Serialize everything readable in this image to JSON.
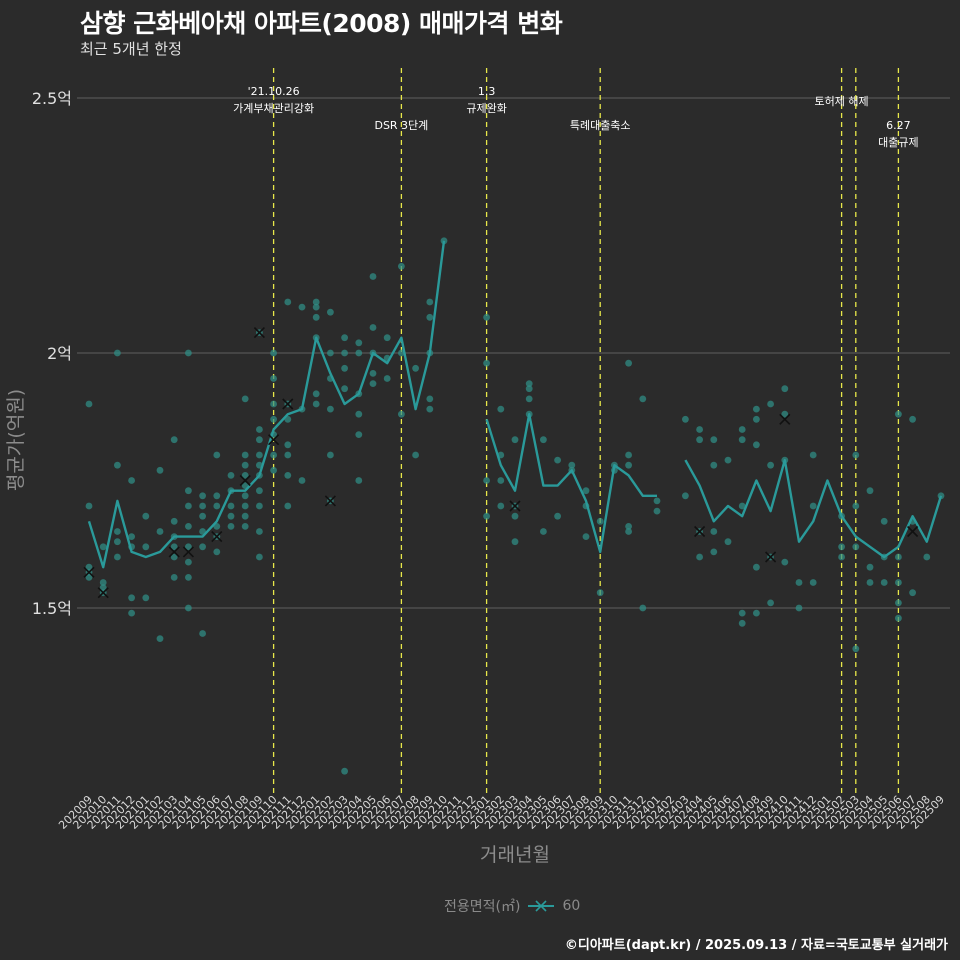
{
  "title": "삼향 근화베아채 아파트(2008) 매매가격 변화",
  "subtitle": "최근 5개년 한정",
  "caption": "©디아파트(dapt.kr) / 2025.09.13 / 자료=국토교통부 실거래가",
  "colors": {
    "background": "#2b2b2b",
    "series": "#2a9a9a",
    "point": "#2f8f86",
    "vline": "#e8e84a",
    "grid": "#555555"
  },
  "chart_data": {
    "type": "line",
    "title": "삼향 근화베아채 아파트(2008) 매매가격 변화",
    "xlabel": "거래년월",
    "ylabel": "평균가(억원)",
    "ylim": [
      1.15,
      2.58
    ],
    "yticks": [
      {
        "v": 1.5,
        "label": "1.5억"
      },
      {
        "v": 2.0,
        "label": "2억"
      },
      {
        "v": 2.5,
        "label": "2.5억"
      }
    ],
    "categories": [
      "202009",
      "202010",
      "202011",
      "202012",
      "202101",
      "202102",
      "202103",
      "202104",
      "202105",
      "202106",
      "202107",
      "202108",
      "202109",
      "202110",
      "202111",
      "202112",
      "202201",
      "202202",
      "202203",
      "202204",
      "202205",
      "202206",
      "202207",
      "202208",
      "202209",
      "202210",
      "202211",
      "202212",
      "202301",
      "202302",
      "202303",
      "202304",
      "202305",
      "202306",
      "202307",
      "202308",
      "202309",
      "202310",
      "202311",
      "202312",
      "202401",
      "202402",
      "202403",
      "202404",
      "202405",
      "202406",
      "202407",
      "202408",
      "202409",
      "202410",
      "202411",
      "202412",
      "202501",
      "202502",
      "202503",
      "202504",
      "202505",
      "202506",
      "202507",
      "202508",
      "202509"
    ],
    "legend": {
      "title": "전용면적(㎡)",
      "label": "60"
    },
    "series": [
      {
        "name": "60",
        "values": [
          1.67,
          1.58,
          1.71,
          1.61,
          1.6,
          1.61,
          1.64,
          1.64,
          1.64,
          1.67,
          1.73,
          1.73,
          1.76,
          1.85,
          1.88,
          1.89,
          2.03,
          1.96,
          1.9,
          1.92,
          2.0,
          1.98,
          2.03,
          1.89,
          2.0,
          2.22,
          null,
          null,
          1.87,
          1.78,
          1.73,
          1.88,
          1.74,
          1.74,
          1.77,
          1.71,
          1.61,
          1.78,
          1.76,
          1.72,
          1.72,
          null,
          1.79,
          1.74,
          1.67,
          1.7,
          1.68,
          1.75,
          1.69,
          1.79,
          1.63,
          1.67,
          1.75,
          1.68,
          1.64,
          1.62,
          1.6,
          1.62,
          1.68,
          1.63,
          1.72
        ]
      }
    ],
    "points": [
      [
        0,
        1.9
      ],
      [
        0,
        1.7
      ],
      [
        0,
        1.58
      ],
      [
        0,
        1.57
      ],
      [
        0,
        1.56
      ],
      [
        1,
        1.62
      ],
      [
        1,
        1.55
      ],
      [
        1,
        1.54
      ],
      [
        1,
        1.53
      ],
      [
        2,
        2.0
      ],
      [
        2,
        1.78
      ],
      [
        2,
        1.65
      ],
      [
        2,
        1.63
      ],
      [
        2,
        1.6
      ],
      [
        3,
        1.75
      ],
      [
        3,
        1.64
      ],
      [
        3,
        1.62
      ],
      [
        3,
        1.52
      ],
      [
        3,
        1.49
      ],
      [
        4,
        1.68
      ],
      [
        4,
        1.62
      ],
      [
        4,
        1.52
      ],
      [
        5,
        1.77
      ],
      [
        5,
        1.65
      ],
      [
        5,
        1.44
      ],
      [
        6,
        1.83
      ],
      [
        6,
        1.67
      ],
      [
        6,
        1.64
      ],
      [
        6,
        1.62
      ],
      [
        6,
        1.6
      ],
      [
        6,
        1.56
      ],
      [
        7,
        2.0
      ],
      [
        7,
        1.73
      ],
      [
        7,
        1.7
      ],
      [
        7,
        1.66
      ],
      [
        7,
        1.62
      ],
      [
        7,
        1.59
      ],
      [
        7,
        1.56
      ],
      [
        7,
        1.5
      ],
      [
        8,
        1.72
      ],
      [
        8,
        1.7
      ],
      [
        8,
        1.68
      ],
      [
        8,
        1.65
      ],
      [
        8,
        1.62
      ],
      [
        8,
        1.45
      ],
      [
        9,
        1.8
      ],
      [
        9,
        1.72
      ],
      [
        9,
        1.7
      ],
      [
        9,
        1.66
      ],
      [
        9,
        1.64
      ],
      [
        9,
        1.61
      ],
      [
        10,
        1.76
      ],
      [
        10,
        1.73
      ],
      [
        10,
        1.7
      ],
      [
        10,
        1.68
      ],
      [
        10,
        1.66
      ],
      [
        11,
        1.91
      ],
      [
        11,
        1.8
      ],
      [
        11,
        1.78
      ],
      [
        11,
        1.76
      ],
      [
        11,
        1.74
      ],
      [
        11,
        1.72
      ],
      [
        11,
        1.7
      ],
      [
        11,
        1.68
      ],
      [
        11,
        1.66
      ],
      [
        12,
        2.04
      ],
      [
        12,
        1.85
      ],
      [
        12,
        1.83
      ],
      [
        12,
        1.8
      ],
      [
        12,
        1.78
      ],
      [
        12,
        1.76
      ],
      [
        12,
        1.73
      ],
      [
        12,
        1.7
      ],
      [
        12,
        1.65
      ],
      [
        12,
        1.6
      ],
      [
        13,
        2.0
      ],
      [
        13,
        1.95
      ],
      [
        13,
        1.9
      ],
      [
        13,
        1.87
      ],
      [
        13,
        1.84
      ],
      [
        13,
        1.8
      ],
      [
        13,
        1.77
      ],
      [
        14,
        2.1
      ],
      [
        14,
        1.9
      ],
      [
        14,
        1.87
      ],
      [
        14,
        1.82
      ],
      [
        14,
        1.8
      ],
      [
        14,
        1.76
      ],
      [
        14,
        1.7
      ],
      [
        15,
        2.09
      ],
      [
        15,
        1.89
      ],
      [
        15,
        1.75
      ],
      [
        16,
        2.1
      ],
      [
        16,
        2.09
      ],
      [
        16,
        2.07
      ],
      [
        16,
        2.03
      ],
      [
        16,
        1.92
      ],
      [
        16,
        1.9
      ],
      [
        17,
        2.08
      ],
      [
        17,
        2.0
      ],
      [
        17,
        1.95
      ],
      [
        17,
        1.89
      ],
      [
        17,
        1.8
      ],
      [
        17,
        1.71
      ],
      [
        18,
        2.03
      ],
      [
        18,
        2.0
      ],
      [
        18,
        1.97
      ],
      [
        18,
        1.93
      ],
      [
        18,
        1.18
      ],
      [
        19,
        2.02
      ],
      [
        19,
        2.0
      ],
      [
        19,
        1.92
      ],
      [
        19,
        1.88
      ],
      [
        19,
        1.84
      ],
      [
        19,
        1.75
      ],
      [
        20,
        2.15
      ],
      [
        20,
        2.05
      ],
      [
        20,
        2.0
      ],
      [
        20,
        1.96
      ],
      [
        20,
        1.94
      ],
      [
        21,
        2.03
      ],
      [
        21,
        1.99
      ],
      [
        21,
        1.95
      ],
      [
        22,
        2.17
      ],
      [
        22,
        2.0
      ],
      [
        22,
        1.88
      ],
      [
        23,
        1.97
      ],
      [
        23,
        1.8
      ],
      [
        24,
        2.1
      ],
      [
        24,
        2.07
      ],
      [
        24,
        2.0
      ],
      [
        24,
        1.91
      ],
      [
        24,
        1.89
      ],
      [
        25,
        2.22
      ],
      [
        28,
        2.07
      ],
      [
        28,
        1.98
      ],
      [
        28,
        1.75
      ],
      [
        28,
        1.68
      ],
      [
        29,
        1.89
      ],
      [
        29,
        1.8
      ],
      [
        29,
        1.75
      ],
      [
        29,
        1.7
      ],
      [
        30,
        1.83
      ],
      [
        30,
        1.7
      ],
      [
        30,
        1.68
      ],
      [
        30,
        1.63
      ],
      [
        31,
        1.94
      ],
      [
        31,
        1.93
      ],
      [
        31,
        1.91
      ],
      [
        31,
        1.88
      ],
      [
        32,
        1.83
      ],
      [
        32,
        1.65
      ],
      [
        33,
        1.79
      ],
      [
        33,
        1.68
      ],
      [
        34,
        1.78
      ],
      [
        34,
        1.77
      ],
      [
        35,
        1.73
      ],
      [
        35,
        1.7
      ],
      [
        35,
        1.64
      ],
      [
        36,
        1.67
      ],
      [
        36,
        1.53
      ],
      [
        37,
        1.78
      ],
      [
        37,
        1.77
      ],
      [
        38,
        1.98
      ],
      [
        38,
        1.8
      ],
      [
        38,
        1.78
      ],
      [
        38,
        1.66
      ],
      [
        38,
        1.65
      ],
      [
        39,
        1.91
      ],
      [
        39,
        1.5
      ],
      [
        40,
        1.71
      ],
      [
        40,
        1.69
      ],
      [
        42,
        1.87
      ],
      [
        42,
        1.72
      ],
      [
        43,
        1.85
      ],
      [
        43,
        1.83
      ],
      [
        43,
        1.65
      ],
      [
        43,
        1.6
      ],
      [
        44,
        1.83
      ],
      [
        44,
        1.78
      ],
      [
        44,
        1.65
      ],
      [
        44,
        1.61
      ],
      [
        45,
        1.79
      ],
      [
        45,
        1.63
      ],
      [
        46,
        1.85
      ],
      [
        46,
        1.83
      ],
      [
        46,
        1.7
      ],
      [
        46,
        1.49
      ],
      [
        46,
        1.47
      ],
      [
        47,
        1.89
      ],
      [
        47,
        1.87
      ],
      [
        47,
        1.82
      ],
      [
        47,
        1.58
      ],
      [
        47,
        1.49
      ],
      [
        48,
        1.9
      ],
      [
        48,
        1.78
      ],
      [
        48,
        1.6
      ],
      [
        48,
        1.51
      ],
      [
        49,
        1.93
      ],
      [
        49,
        1.88
      ],
      [
        49,
        1.79
      ],
      [
        49,
        1.59
      ],
      [
        50,
        1.55
      ],
      [
        50,
        1.5
      ],
      [
        51,
        1.8
      ],
      [
        51,
        1.7
      ],
      [
        51,
        1.55
      ],
      [
        53,
        1.68
      ],
      [
        53,
        1.62
      ],
      [
        53,
        1.6
      ],
      [
        54,
        1.8
      ],
      [
        54,
        1.7
      ],
      [
        54,
        1.62
      ],
      [
        54,
        1.42
      ],
      [
        55,
        1.73
      ],
      [
        55,
        1.58
      ],
      [
        55,
        1.55
      ],
      [
        56,
        1.67
      ],
      [
        56,
        1.6
      ],
      [
        56,
        1.55
      ],
      [
        57,
        1.88
      ],
      [
        57,
        1.6
      ],
      [
        57,
        1.55
      ],
      [
        57,
        1.51
      ],
      [
        57,
        1.48
      ],
      [
        58,
        1.87
      ],
      [
        58,
        1.67
      ],
      [
        58,
        1.53
      ],
      [
        59,
        1.6
      ],
      [
        60,
        1.72
      ]
    ],
    "markers": [
      [
        0,
        1.57
      ],
      [
        1,
        1.53
      ],
      [
        6,
        1.61
      ],
      [
        7,
        1.61
      ],
      [
        9,
        1.64
      ],
      [
        11,
        1.75
      ],
      [
        12,
        2.04
      ],
      [
        13,
        1.83
      ],
      [
        14,
        1.9
      ],
      [
        17,
        1.71
      ],
      [
        30,
        1.7
      ],
      [
        43,
        1.65
      ],
      [
        48,
        1.6
      ],
      [
        49,
        1.87
      ],
      [
        58,
        1.65
      ]
    ],
    "events": [
      {
        "x": 13,
        "line1": "'21.10.26",
        "line2": "가계부채관리강화"
      },
      {
        "x": 22,
        "line1": "",
        "line2": "DSR 3단계"
      },
      {
        "x": 28,
        "line1": "1.3",
        "line2": "규제완화"
      },
      {
        "x": 36,
        "line1": "",
        "line2": "특례대출축소"
      },
      {
        "x": 53,
        "line1": "",
        "line2": "토허제 해제"
      },
      {
        "x": 54,
        "line1": "",
        "line2": ""
      },
      {
        "x": 57,
        "line1": "6.27",
        "line2": "대출규제"
      }
    ]
  }
}
